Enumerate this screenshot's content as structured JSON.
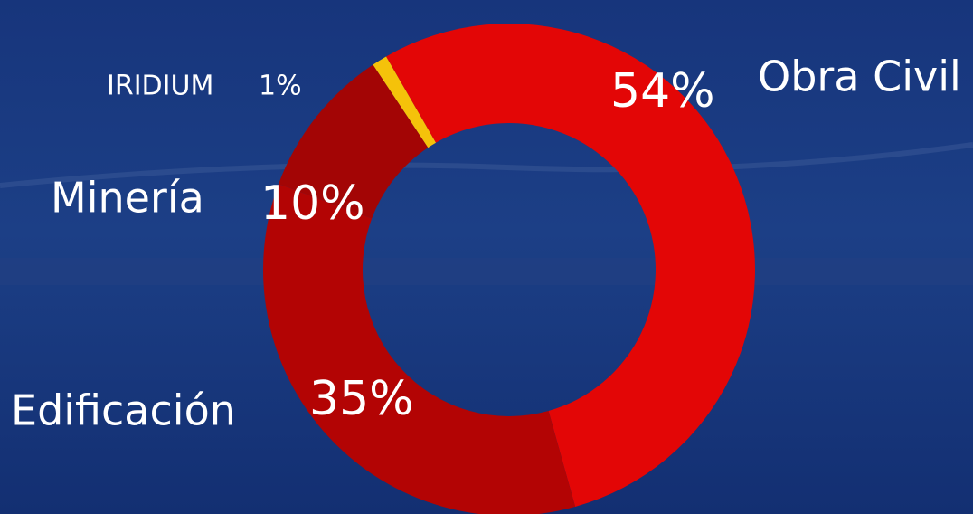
{
  "chart_data": {
    "type": "pie",
    "categories": [
      "Obra Civil",
      "Edificación",
      "Minería",
      "IRIDIUM"
    ],
    "values": [
      54,
      35,
      10,
      1
    ],
    "value_labels": [
      "54%",
      "35%",
      "10%",
      "1%"
    ],
    "colors": [
      "#e30606",
      "#b30404",
      "#a30505",
      "#f5c20a"
    ]
  }
}
